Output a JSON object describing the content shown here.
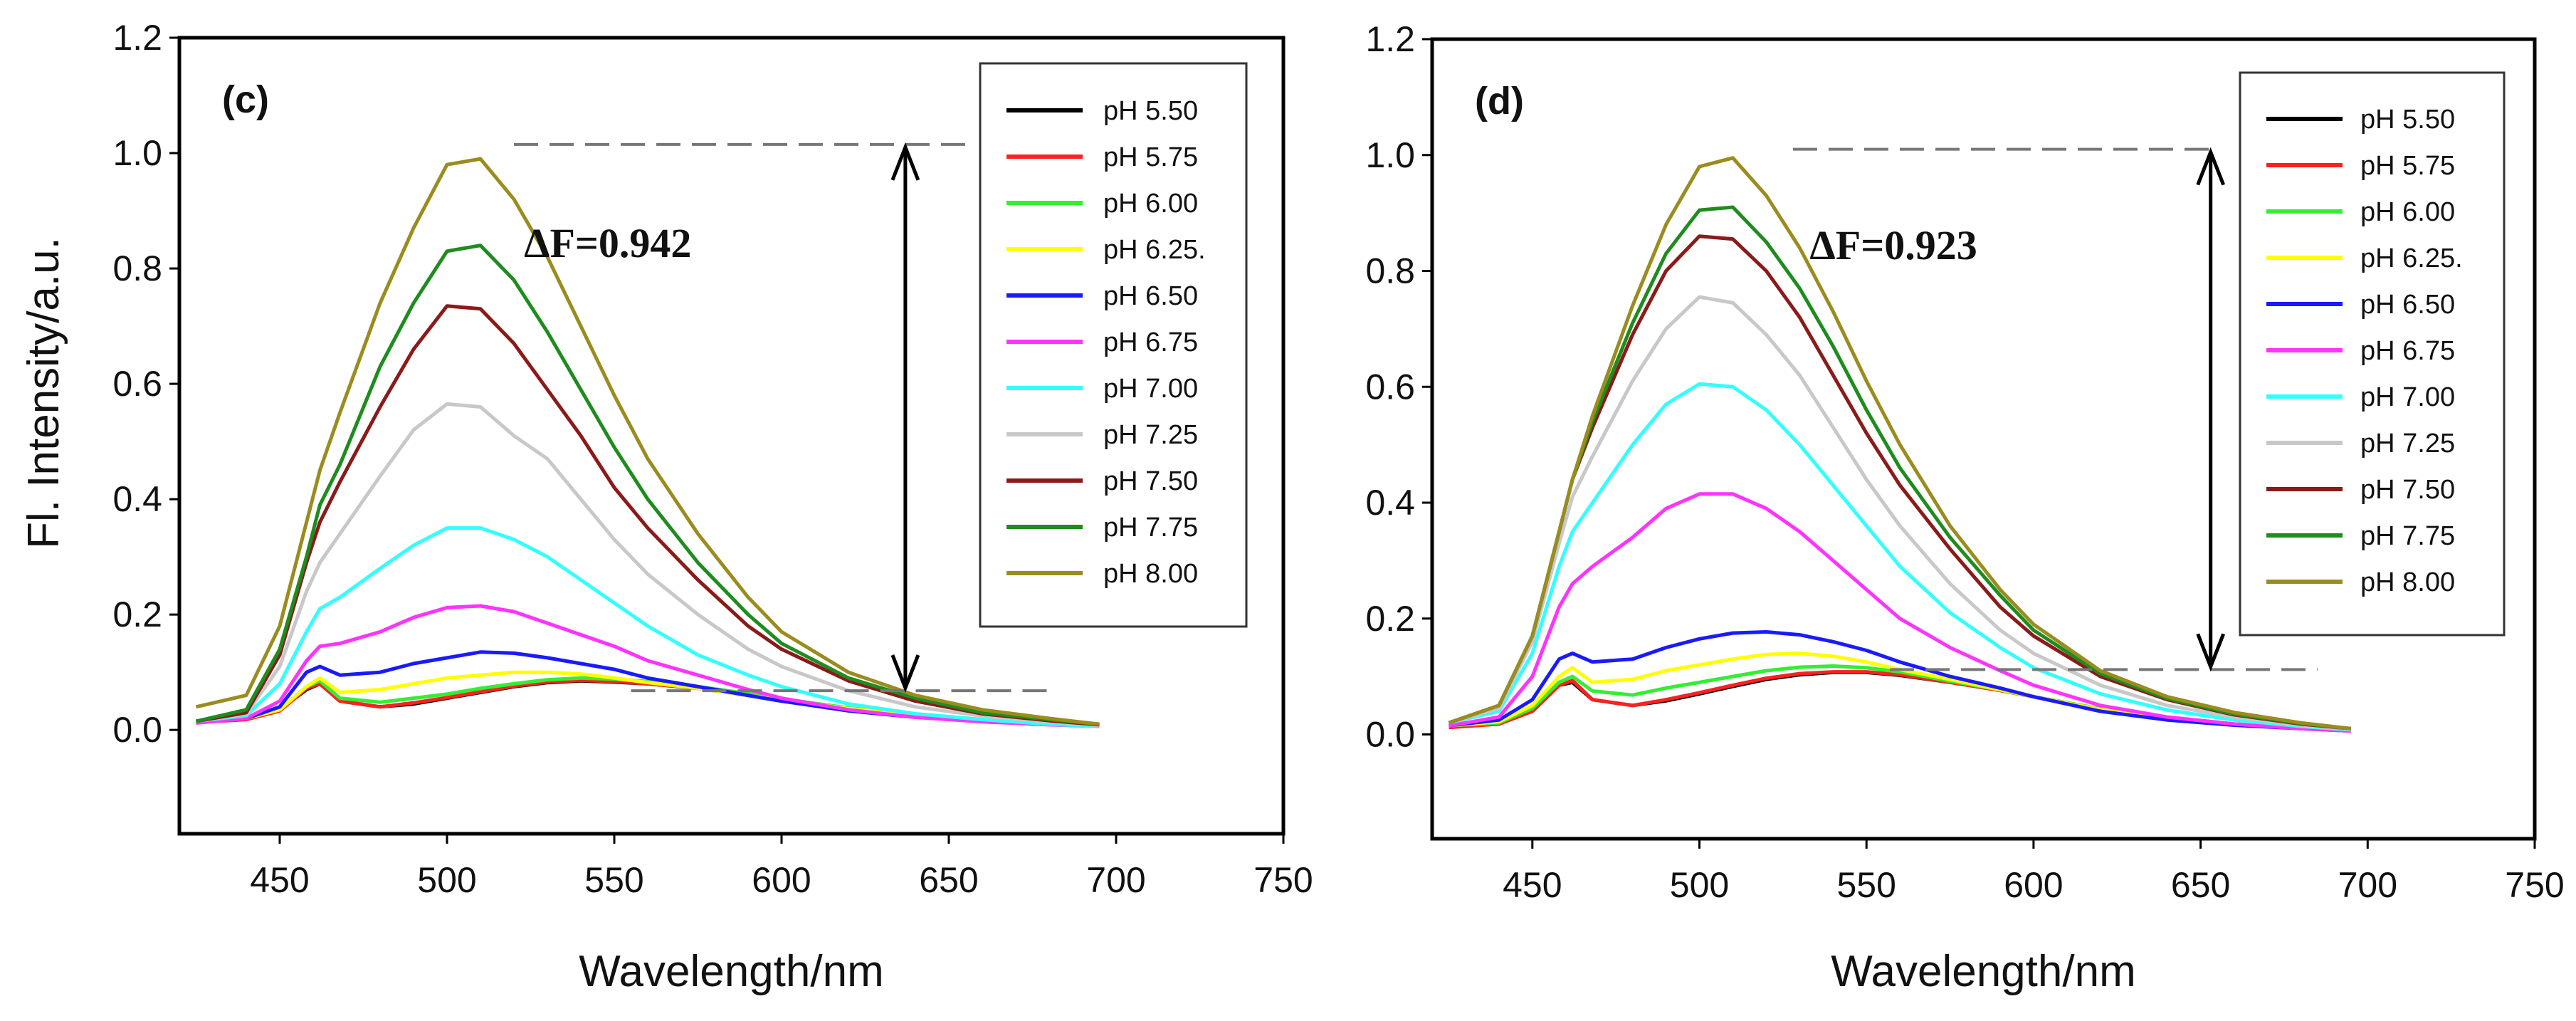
{
  "chart_data": [
    {
      "type": "line",
      "panel_label": "(c)",
      "xlabel": "Wavelength/nm",
      "ylabel": "Fl. Intensity/a.u.",
      "xlim": [
        420,
        750
      ],
      "ylim": [
        -0.18,
        1.2
      ],
      "xticks": [
        "450",
        "500",
        "550",
        "600",
        "650",
        "700",
        "750"
      ],
      "yticks": [
        "0.0",
        "0.2",
        "0.4",
        "0.6",
        "0.8",
        "1.0",
        "1.2"
      ],
      "legend_position": "top-right",
      "annotation": {
        "text": "ΔF=0.942",
        "x": 523,
        "y": 0.82,
        "arrow_x": 637,
        "y_low": 0.068,
        "y_high": 1.015,
        "top_dash": [
          520,
          655
        ],
        "bottom_dash": [
          555,
          680
        ]
      },
      "x": [
        425,
        440,
        450,
        458,
        462,
        468,
        480,
        490,
        500,
        510,
        520,
        530,
        540,
        550,
        560,
        575,
        590,
        600,
        620,
        640,
        660,
        680,
        695
      ],
      "series": [
        {
          "name": "pH 5.50",
          "color": "#000000",
          "values": [
            0.015,
            0.02,
            0.035,
            0.07,
            0.08,
            0.05,
            0.04,
            0.045,
            0.055,
            0.065,
            0.075,
            0.082,
            0.085,
            0.083,
            0.08,
            0.072,
            0.06,
            0.05,
            0.035,
            0.025,
            0.017,
            0.01,
            0.007
          ]
        },
        {
          "name": "pH 5.75",
          "color": "#ff2020",
          "values": [
            0.013,
            0.018,
            0.033,
            0.072,
            0.08,
            0.05,
            0.04,
            0.047,
            0.056,
            0.066,
            0.076,
            0.083,
            0.086,
            0.084,
            0.08,
            0.073,
            0.061,
            0.052,
            0.037,
            0.026,
            0.017,
            0.011,
            0.007
          ]
        },
        {
          "name": "pH 6.00",
          "color": "#33ee33",
          "values": [
            0.015,
            0.02,
            0.035,
            0.075,
            0.085,
            0.055,
            0.048,
            0.055,
            0.062,
            0.072,
            0.08,
            0.087,
            0.09,
            0.088,
            0.084,
            0.075,
            0.063,
            0.054,
            0.038,
            0.027,
            0.018,
            0.011,
            0.008
          ]
        },
        {
          "name": "pH 6.25.",
          "color": "#ffff00",
          "values": [
            0.015,
            0.02,
            0.035,
            0.075,
            0.09,
            0.065,
            0.07,
            0.08,
            0.09,
            0.095,
            0.1,
            0.1,
            0.097,
            0.09,
            0.082,
            0.072,
            0.06,
            0.052,
            0.037,
            0.026,
            0.018,
            0.011,
            0.008
          ]
        },
        {
          "name": "pH 6.50",
          "color": "#1a1aff",
          "values": [
            0.015,
            0.02,
            0.04,
            0.1,
            0.11,
            0.095,
            0.1,
            0.115,
            0.125,
            0.135,
            0.133,
            0.125,
            0.115,
            0.105,
            0.09,
            0.075,
            0.06,
            0.05,
            0.033,
            0.022,
            0.015,
            0.01,
            0.007
          ]
        },
        {
          "name": "pH 6.75",
          "color": "#ff33ff",
          "values": [
            0.012,
            0.02,
            0.05,
            0.12,
            0.145,
            0.15,
            0.17,
            0.195,
            0.212,
            0.215,
            0.205,
            0.185,
            0.165,
            0.145,
            0.12,
            0.095,
            0.07,
            0.055,
            0.035,
            0.022,
            0.014,
            0.009,
            0.006
          ]
        },
        {
          "name": "pH 7.00",
          "color": "#33ffff",
          "values": [
            0.015,
            0.025,
            0.08,
            0.17,
            0.21,
            0.23,
            0.28,
            0.32,
            0.35,
            0.35,
            0.33,
            0.3,
            0.26,
            0.22,
            0.18,
            0.13,
            0.095,
            0.075,
            0.045,
            0.028,
            0.018,
            0.01,
            0.006
          ]
        },
        {
          "name": "pH 7.25",
          "color": "#c8c8c8",
          "values": [
            0.015,
            0.028,
            0.11,
            0.24,
            0.29,
            0.34,
            0.44,
            0.52,
            0.565,
            0.56,
            0.51,
            0.47,
            0.4,
            0.33,
            0.27,
            0.2,
            0.14,
            0.11,
            0.068,
            0.04,
            0.024,
            0.014,
            0.008
          ]
        },
        {
          "name": "pH 7.50",
          "color": "#8b1a1a",
          "values": [
            0.015,
            0.03,
            0.13,
            0.29,
            0.36,
            0.43,
            0.56,
            0.66,
            0.735,
            0.73,
            0.67,
            0.59,
            0.51,
            0.42,
            0.35,
            0.26,
            0.18,
            0.14,
            0.085,
            0.05,
            0.028,
            0.016,
            0.009
          ]
        },
        {
          "name": "pH 7.75",
          "color": "#1e8c1e",
          "values": [
            0.015,
            0.035,
            0.14,
            0.3,
            0.39,
            0.46,
            0.63,
            0.74,
            0.83,
            0.84,
            0.78,
            0.69,
            0.59,
            0.49,
            0.4,
            0.29,
            0.2,
            0.15,
            0.09,
            0.055,
            0.03,
            0.018,
            0.01
          ]
        },
        {
          "name": "pH 8.00",
          "color": "#9a8c1e",
          "values": [
            0.04,
            0.06,
            0.18,
            0.36,
            0.45,
            0.55,
            0.74,
            0.87,
            0.98,
            0.99,
            0.92,
            0.82,
            0.7,
            0.58,
            0.47,
            0.34,
            0.23,
            0.17,
            0.1,
            0.06,
            0.035,
            0.02,
            0.01
          ]
        }
      ]
    },
    {
      "type": "line",
      "panel_label": "(d)",
      "xlabel": "Wavelength/nm",
      "ylabel": "",
      "xlim": [
        420,
        750
      ],
      "ylim": [
        -0.18,
        1.2
      ],
      "xticks": [
        "450",
        "500",
        "550",
        "600",
        "650",
        "700",
        "750"
      ],
      "yticks": [
        "0.0",
        "0.2",
        "0.4",
        "0.6",
        "0.8",
        "1.0",
        "1.2"
      ],
      "legend_position": "top-right",
      "annotation": {
        "text": "ΔF=0.923",
        "x": 533,
        "y": 0.82,
        "arrow_x": 653,
        "y_low": 0.112,
        "y_high": 1.01,
        "top_dash": [
          528,
          655
        ],
        "bottom_dash": [
          557,
          685
        ]
      },
      "x": [
        425,
        440,
        450,
        458,
        462,
        468,
        480,
        490,
        500,
        510,
        520,
        530,
        540,
        550,
        560,
        575,
        590,
        600,
        620,
        640,
        660,
        680,
        695
      ],
      "series": [
        {
          "name": "pH 5.50",
          "color": "#000000",
          "values": [
            0.015,
            0.02,
            0.04,
            0.085,
            0.09,
            0.06,
            0.05,
            0.058,
            0.07,
            0.083,
            0.095,
            0.103,
            0.107,
            0.107,
            0.102,
            0.09,
            0.076,
            0.065,
            0.044,
            0.029,
            0.018,
            0.011,
            0.007
          ]
        },
        {
          "name": "pH 5.75",
          "color": "#ff2020",
          "values": [
            0.012,
            0.018,
            0.04,
            0.085,
            0.093,
            0.06,
            0.05,
            0.06,
            0.072,
            0.085,
            0.097,
            0.105,
            0.108,
            0.108,
            0.103,
            0.09,
            0.076,
            0.065,
            0.044,
            0.029,
            0.018,
            0.011,
            0.007
          ]
        },
        {
          "name": "pH 6.00",
          "color": "#33ee33",
          "values": [
            0.015,
            0.02,
            0.045,
            0.09,
            0.1,
            0.075,
            0.068,
            0.08,
            0.09,
            0.1,
            0.11,
            0.116,
            0.118,
            0.115,
            0.108,
            0.092,
            0.077,
            0.065,
            0.044,
            0.029,
            0.018,
            0.011,
            0.007
          ]
        },
        {
          "name": "pH 6.25.",
          "color": "#ffff00",
          "values": [
            0.015,
            0.022,
            0.05,
            0.1,
            0.115,
            0.09,
            0.095,
            0.11,
            0.12,
            0.13,
            0.138,
            0.14,
            0.135,
            0.125,
            0.112,
            0.095,
            0.077,
            0.065,
            0.043,
            0.028,
            0.018,
            0.011,
            0.007
          ]
        },
        {
          "name": "pH 6.50",
          "color": "#1a1aff",
          "values": [
            0.015,
            0.025,
            0.06,
            0.13,
            0.14,
            0.125,
            0.13,
            0.15,
            0.165,
            0.175,
            0.177,
            0.172,
            0.16,
            0.145,
            0.125,
            0.1,
            0.08,
            0.065,
            0.04,
            0.025,
            0.016,
            0.01,
            0.006
          ]
        },
        {
          "name": "pH 6.75",
          "color": "#ff33ff",
          "values": [
            0.015,
            0.03,
            0.1,
            0.22,
            0.26,
            0.29,
            0.34,
            0.39,
            0.415,
            0.415,
            0.39,
            0.35,
            0.3,
            0.25,
            0.2,
            0.15,
            0.11,
            0.085,
            0.05,
            0.03,
            0.018,
            0.01,
            0.006
          ]
        },
        {
          "name": "pH 7.00",
          "color": "#33ffff",
          "values": [
            0.02,
            0.04,
            0.14,
            0.29,
            0.35,
            0.4,
            0.5,
            0.57,
            0.605,
            0.6,
            0.56,
            0.5,
            0.43,
            0.36,
            0.29,
            0.21,
            0.15,
            0.115,
            0.07,
            0.042,
            0.025,
            0.014,
            0.008
          ]
        },
        {
          "name": "pH 7.25",
          "color": "#c8c8c8",
          "values": [
            0.02,
            0.045,
            0.16,
            0.33,
            0.41,
            0.48,
            0.61,
            0.7,
            0.755,
            0.745,
            0.69,
            0.62,
            0.53,
            0.44,
            0.36,
            0.26,
            0.18,
            0.14,
            0.085,
            0.05,
            0.03,
            0.016,
            0.009
          ]
        },
        {
          "name": "pH 7.50",
          "color": "#8b1a1a",
          "values": [
            0.02,
            0.05,
            0.17,
            0.35,
            0.44,
            0.53,
            0.69,
            0.8,
            0.86,
            0.855,
            0.8,
            0.72,
            0.62,
            0.52,
            0.43,
            0.32,
            0.22,
            0.17,
            0.1,
            0.06,
            0.034,
            0.018,
            0.01
          ]
        },
        {
          "name": "pH 7.75",
          "color": "#1e8c1e",
          "values": [
            0.02,
            0.05,
            0.17,
            0.35,
            0.44,
            0.54,
            0.71,
            0.83,
            0.905,
            0.91,
            0.85,
            0.77,
            0.67,
            0.56,
            0.46,
            0.34,
            0.24,
            0.18,
            0.105,
            0.062,
            0.035,
            0.019,
            0.01
          ]
        },
        {
          "name": "pH 8.00",
          "color": "#9a8c1e",
          "values": [
            0.02,
            0.05,
            0.17,
            0.35,
            0.44,
            0.55,
            0.74,
            0.88,
            0.98,
            0.995,
            0.93,
            0.84,
            0.73,
            0.61,
            0.5,
            0.36,
            0.25,
            0.19,
            0.11,
            0.065,
            0.038,
            0.02,
            0.01
          ]
        }
      ]
    }
  ]
}
